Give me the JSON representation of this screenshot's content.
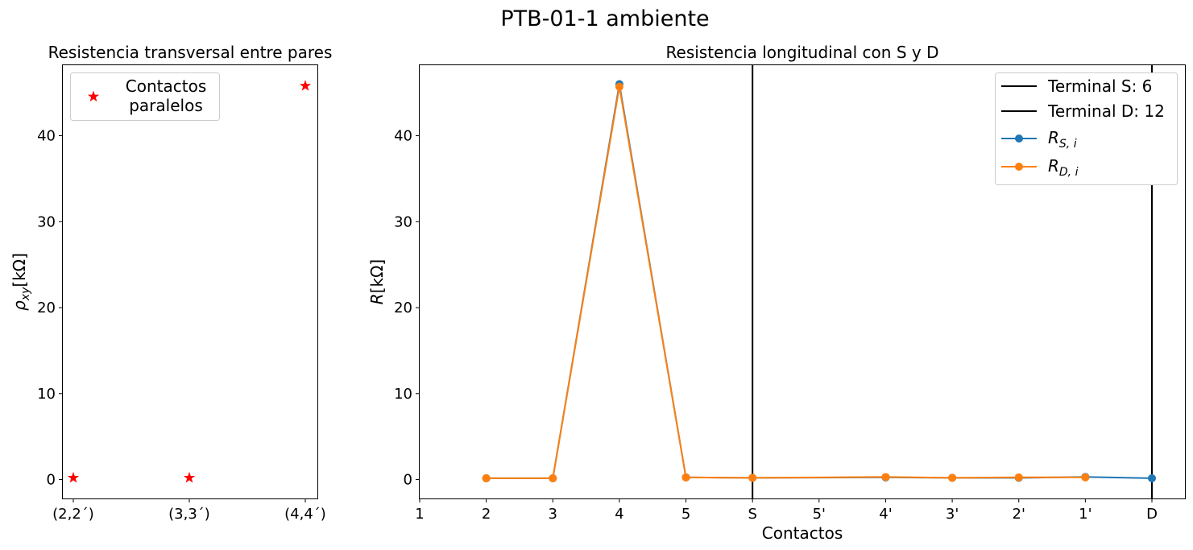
{
  "figure_title": "PTB-01-1 ambiente",
  "chart_data": [
    {
      "type": "scatter",
      "title": "Resistencia transversal entre pares",
      "xlabel": "",
      "ylabel_base": "ρ",
      "ylabel_sub": "xy",
      "ylabel_unit": "[kΩ]",
      "categories": [
        "(2,2´)",
        "(3,3´)",
        "(4,4´)"
      ],
      "yticks": [
        0,
        10,
        20,
        30,
        40
      ],
      "ylim": [
        -2.2,
        48.2
      ],
      "grid": false,
      "legend_position": "top-left",
      "series": [
        {
          "name_lines": [
            "Contactos",
            "paralelos"
          ],
          "marker": "star",
          "color": "#ff0000",
          "values": [
            0.2,
            0.2,
            45.8
          ]
        }
      ]
    },
    {
      "type": "line",
      "title": "Resistencia longitudinal con S y D",
      "xlabel": "Contactos",
      "ylabel_base": "R",
      "ylabel_unit": "[kΩ]",
      "categories": [
        "1",
        "2",
        "3",
        "4",
        "5",
        "S",
        "5'",
        "4'",
        "3'",
        "2'",
        "1'",
        "D"
      ],
      "yticks": [
        0,
        10,
        20,
        30,
        40
      ],
      "ylim": [
        -2.2,
        48.2
      ],
      "grid": false,
      "legend_position": "top-right",
      "vlines": [
        {
          "name": "Terminal S: 6",
          "x": "S",
          "color": "#000000"
        },
        {
          "name": "Terminal D: 12",
          "x": "D",
          "color": "#000000"
        }
      ],
      "series": [
        {
          "name_base": "R",
          "name_sub": "S, i",
          "color": "#1f77b4",
          "x": [
            "2",
            "3",
            "4",
            "5",
            "S",
            "4'",
            "3'",
            "2'",
            "1'",
            "D"
          ],
          "values": [
            0.15,
            0.15,
            46.0,
            0.25,
            0.2,
            0.25,
            0.2,
            0.2,
            0.3,
            0.15
          ]
        },
        {
          "name_base": "R",
          "name_sub": "D, i",
          "color": "#ff7f0e",
          "x": [
            "2",
            "3",
            "4",
            "5",
            "S",
            "4'",
            "3'",
            "2'",
            "1'"
          ],
          "values": [
            0.15,
            0.15,
            45.7,
            0.25,
            0.2,
            0.3,
            0.2,
            0.25,
            0.25
          ]
        }
      ]
    }
  ]
}
